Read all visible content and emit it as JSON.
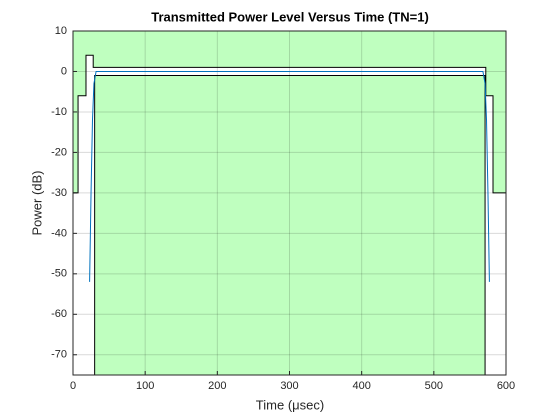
{
  "chart_data": {
    "type": "line",
    "title": "Transmitted Power Level Versus Time (TN=1)",
    "x_label": "Time  (μsec)",
    "y_label": "Power (dB)",
    "xlim": [
      0,
      600
    ],
    "ylim": [
      -75,
      10
    ],
    "xticks": [
      0,
      100,
      200,
      300,
      400,
      500,
      600
    ],
    "yticks": [
      10,
      0,
      -10,
      -20,
      -30,
      -40,
      -50,
      -60,
      -70
    ],
    "grid": true,
    "mask_fill_color": "#bfffbf",
    "series": [
      {
        "role": "upper",
        "color": "#000000",
        "x": [
          0,
          7,
          7,
          18,
          18,
          28,
          28,
          572,
          572,
          582,
          582,
          600
        ],
        "values": [
          -30,
          -30,
          -6,
          -6,
          4,
          4,
          1,
          1,
          -6,
          -6,
          -30,
          -30
        ]
      },
      {
        "role": "lower",
        "color": "#000000",
        "x": [
          30,
          30,
          571,
          571
        ],
        "values": [
          -75,
          -1,
          -1,
          -75
        ]
      },
      {
        "role": "signal",
        "color": "#0072bd",
        "x": [
          23,
          25,
          27,
          29,
          32,
          568,
          571,
          573,
          575,
          577
        ],
        "values": [
          -52,
          -30,
          -12,
          -3,
          0,
          0,
          -3,
          -12,
          -30,
          -52
        ]
      }
    ]
  }
}
